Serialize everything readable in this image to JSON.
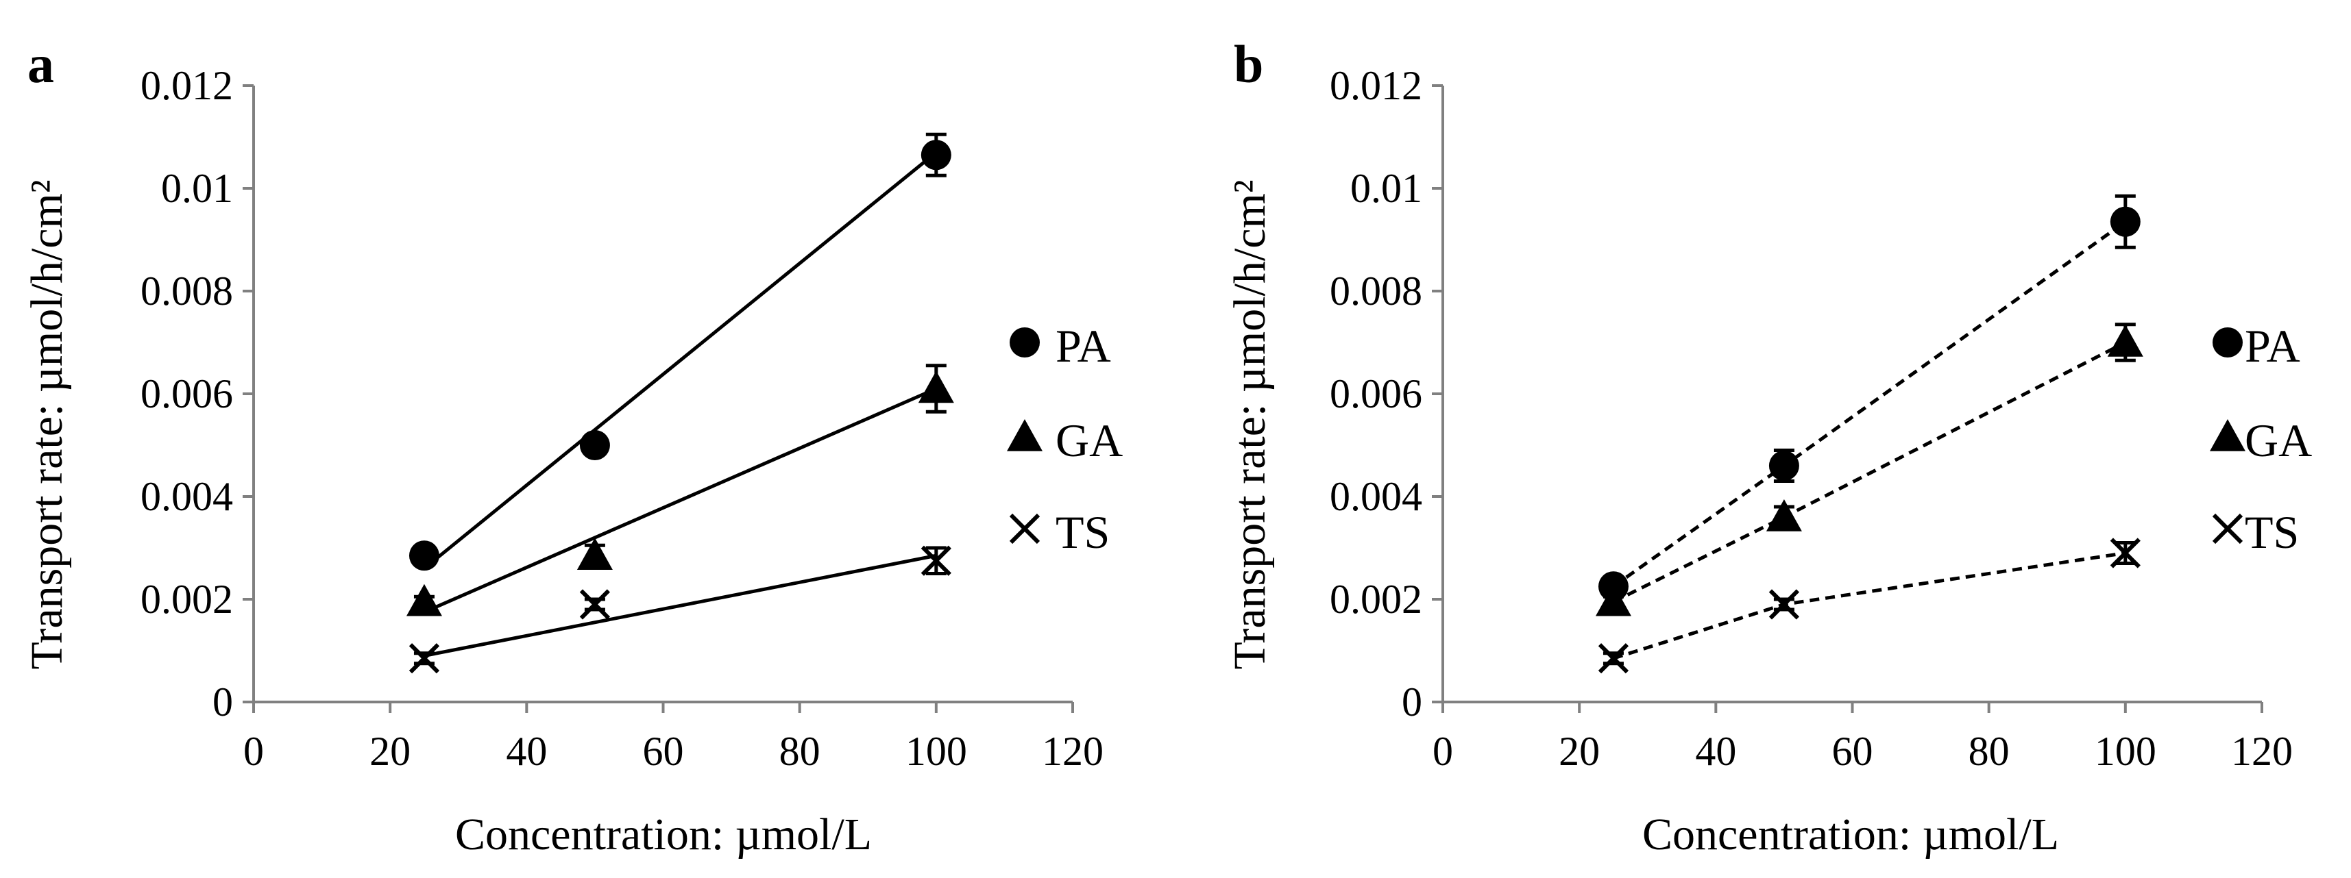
{
  "chart_data": [
    {
      "panel": "a",
      "type": "scatter",
      "line_style": "solid",
      "xlabel": "Concentration: µmol/L",
      "ylabel": "Transport rate: µmol/h/cm²",
      "xlim": [
        0,
        120
      ],
      "ylim": [
        0,
        0.012
      ],
      "xticks": [
        "0",
        "20",
        "40",
        "60",
        "80",
        "100",
        "120"
      ],
      "yticks": [
        "0",
        "0.002",
        "0.004",
        "0.006",
        "0.008",
        "0.01",
        "0.012"
      ],
      "legend_position": "right",
      "series": [
        {
          "name": "PA",
          "marker": "circle",
          "x": [
            25,
            50,
            100
          ],
          "y": [
            0.00285,
            0.005,
            0.01065
          ],
          "err": [
            0.0001,
            0.00015,
            0.0004
          ],
          "fit": [
            0.0026,
            0.0107
          ]
        },
        {
          "name": "GA",
          "marker": "triangle",
          "x": [
            25,
            50,
            100
          ],
          "y": [
            0.00195,
            0.00285,
            0.0061
          ],
          "err": [
            0.0001,
            0.0002,
            0.00045
          ],
          "fit": [
            0.00175,
            0.0061
          ]
        },
        {
          "name": "TS",
          "marker": "x",
          "x": [
            25,
            50,
            100
          ],
          "y": [
            0.00085,
            0.0019,
            0.00275
          ],
          "err": [
            0.0001,
            0.0001,
            0.00025
          ],
          "fit": [
            0.0009,
            0.00285
          ]
        }
      ]
    },
    {
      "panel": "b",
      "type": "scatter",
      "line_style": "dashed",
      "xlabel": "Concentration: µmol/L",
      "ylabel": "Transport rate: µmol/h/cm²",
      "xlim": [
        0,
        120
      ],
      "ylim": [
        0,
        0.012
      ],
      "xticks": [
        "0",
        "20",
        "40",
        "60",
        "80",
        "100",
        "120"
      ],
      "yticks": [
        "0",
        "0.002",
        "0.004",
        "0.006",
        "0.008",
        "0.01",
        "0.012"
      ],
      "legend_position": "right",
      "series": [
        {
          "name": "PA",
          "marker": "circle",
          "x": [
            25,
            50,
            100
          ],
          "y": [
            0.00225,
            0.0046,
            0.00935
          ],
          "err": [
            0.0001,
            0.0003,
            0.0005
          ],
          "fit": null
        },
        {
          "name": "GA",
          "marker": "triangle",
          "x": [
            25,
            50,
            100
          ],
          "y": [
            0.00195,
            0.0036,
            0.007
          ],
          "err": [
            0.0001,
            0.0002,
            0.00035
          ],
          "fit": null
        },
        {
          "name": "TS",
          "marker": "x",
          "x": [
            25,
            50,
            100
          ],
          "y": [
            0.00085,
            0.0019,
            0.0029
          ],
          "err": [
            0.0001,
            0.0001,
            0.0002
          ],
          "fit": null
        }
      ]
    }
  ]
}
